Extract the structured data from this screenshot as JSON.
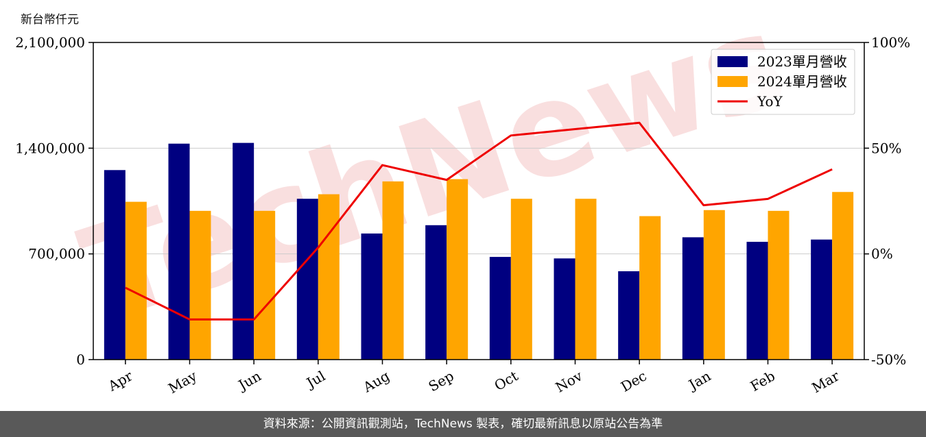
{
  "unit_label": "新台幣仟元",
  "footer_text": "資料來源：公開資訊觀測站，TechNews 製表，確切最新訊息以原站公告為準",
  "watermark_text": "TechNews",
  "colors": {
    "series_2023": "#000080",
    "series_2024": "#FFA500",
    "yoy": "#EE0000",
    "grid": "#cccccc",
    "watermark": "#f2b8b8"
  },
  "chart_data": {
    "type": "bar",
    "categories": [
      "Apr",
      "May",
      "Jun",
      "Jul",
      "Aug",
      "Sep",
      "Oct",
      "Nov",
      "Dec",
      "Jan",
      "Feb",
      "Mar"
    ],
    "series": [
      {
        "name": "2023單月營收",
        "type": "bar",
        "axis": "left",
        "values": [
          1255000,
          1430000,
          1435000,
          1065000,
          835000,
          890000,
          680000,
          670000,
          585000,
          810000,
          780000,
          795000
        ]
      },
      {
        "name": "2024單月營收",
        "type": "bar",
        "axis": "left",
        "values": [
          1045000,
          985000,
          985000,
          1095000,
          1180000,
          1195000,
          1065000,
          1065000,
          950000,
          990000,
          985000,
          1110000
        ]
      },
      {
        "name": "YoY",
        "type": "line",
        "axis": "right",
        "values": [
          -16,
          -31,
          -31,
          3,
          42,
          35,
          56,
          59,
          62,
          23,
          26,
          40
        ]
      }
    ],
    "y_left": {
      "min": 0,
      "max": 2100000,
      "ticks": [
        0,
        700000,
        1400000,
        2100000
      ],
      "tick_labels": [
        "0",
        "700,000",
        "1,400,000",
        "2,100,000"
      ]
    },
    "y_right": {
      "min": -50,
      "max": 100,
      "ticks": [
        -50,
        0,
        50,
        100
      ],
      "tick_labels": [
        "-50%",
        "0%",
        "50%",
        "100%"
      ]
    },
    "grid": "horizontal",
    "legend_position": "top-right"
  }
}
